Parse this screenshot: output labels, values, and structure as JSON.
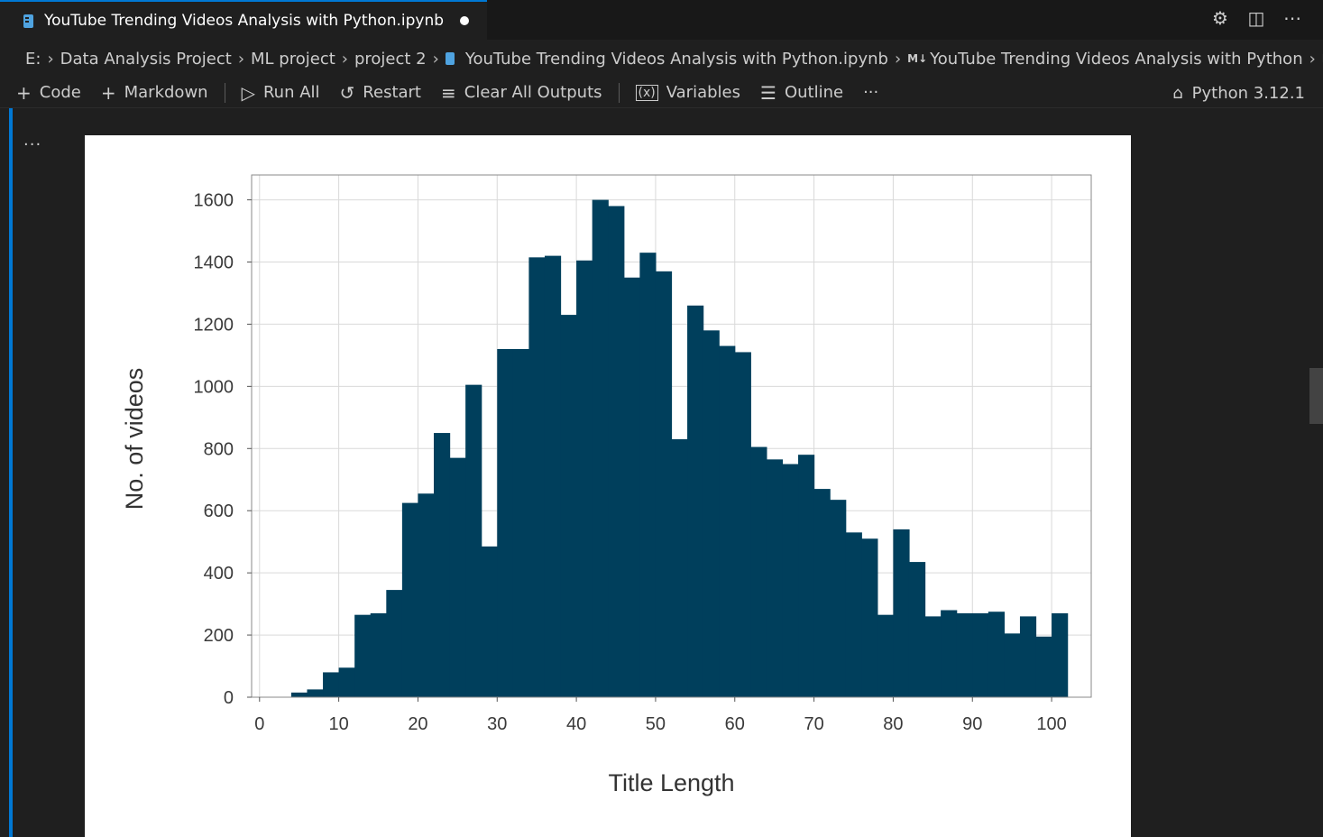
{
  "tab": {
    "title": "YouTube Trending Videos Analysis with Python.ipynb"
  },
  "window_actions": {
    "settings_icon": "gear-icon",
    "split_icon": "split-editor-icon",
    "more_icon": "more-icon"
  },
  "breadcrumb": {
    "items": [
      "E:",
      "Data Analysis Project",
      "ML project",
      "project 2",
      "YouTube Trending Videos Analysis with Python.ipynb",
      "YouTube Trending Videos Analysis with Python"
    ],
    "md_prefix": "M↓",
    "trailing_md": "M↓"
  },
  "toolbar": {
    "code_label": "Code",
    "markdown_label": "Markdown",
    "run_all_label": "Run All",
    "restart_label": "Restart",
    "clear_outputs_label": "Clear All Outputs",
    "variables_label": "Variables",
    "outline_label": "Outline",
    "more_label": "···",
    "kernel_label": "Python 3.12.1"
  },
  "cell": {
    "more_label": "···"
  },
  "chart_data": {
    "type": "bar",
    "xlabel": "Title Length",
    "ylabel": "No. of videos",
    "xlim": [
      -1,
      105
    ],
    "ylim": [
      0,
      1680
    ],
    "xticks": [
      0,
      10,
      20,
      30,
      40,
      50,
      60,
      70,
      80,
      90,
      100
    ],
    "yticks": [
      0,
      200,
      400,
      600,
      800,
      1000,
      1200,
      1400,
      1600
    ],
    "grid": true,
    "bar_color": "#003f5c",
    "bin_edges": [
      4,
      6,
      8,
      10,
      12,
      14,
      16,
      18,
      20,
      22,
      24,
      26,
      28,
      30,
      32,
      34,
      36,
      38,
      40,
      42,
      44,
      46,
      48,
      50,
      52,
      54,
      56,
      58,
      60,
      62,
      64,
      66,
      68,
      70,
      72,
      74,
      76,
      78,
      80,
      82,
      84,
      86,
      88,
      90,
      92,
      94,
      96,
      98,
      100
    ],
    "values": [
      15,
      25,
      80,
      95,
      265,
      270,
      345,
      625,
      655,
      850,
      770,
      1005,
      485,
      1120,
      1120,
      1415,
      1420,
      1230,
      1405,
      1600,
      1580,
      1350,
      1430,
      1370,
      830,
      1260,
      1180,
      1130,
      1110,
      805,
      765,
      750,
      780,
      670,
      635,
      530,
      510,
      265,
      540,
      435,
      260,
      280,
      270,
      270,
      275,
      205,
      260,
      195,
      270
    ]
  }
}
